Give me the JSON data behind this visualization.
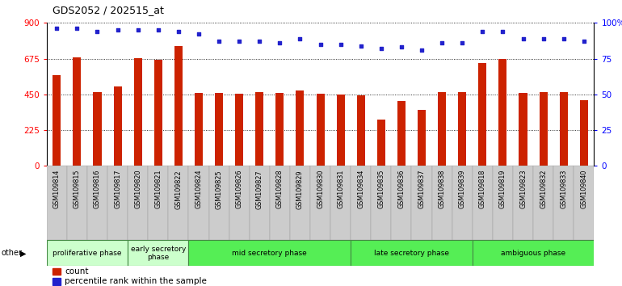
{
  "title": "GDS2052 / 202515_at",
  "samples": [
    "GSM109814",
    "GSM109815",
    "GSM109816",
    "GSM109817",
    "GSM109820",
    "GSM109821",
    "GSM109822",
    "GSM109824",
    "GSM109825",
    "GSM109826",
    "GSM109827",
    "GSM109828",
    "GSM109829",
    "GSM109830",
    "GSM109831",
    "GSM109834",
    "GSM109835",
    "GSM109836",
    "GSM109837",
    "GSM109838",
    "GSM109839",
    "GSM109818",
    "GSM109819",
    "GSM109823",
    "GSM109832",
    "GSM109833",
    "GSM109840"
  ],
  "counts": [
    570,
    685,
    465,
    500,
    680,
    668,
    755,
    460,
    460,
    455,
    462,
    460,
    475,
    455,
    450,
    445,
    290,
    410,
    355,
    462,
    462,
    648,
    672,
    460,
    462,
    462,
    415
  ],
  "percentiles": [
    96,
    96,
    94,
    95,
    95,
    95,
    94,
    92,
    87,
    87,
    87,
    86,
    89,
    85,
    85,
    84,
    82,
    83,
    81,
    86,
    86,
    94,
    94,
    89,
    89,
    89,
    87
  ],
  "bar_color": "#cc2200",
  "dot_color": "#2222cc",
  "ylim_left": [
    0,
    900
  ],
  "ylim_right": [
    0,
    100
  ],
  "yticks_left": [
    0,
    225,
    450,
    675,
    900
  ],
  "yticks_right": [
    0,
    25,
    50,
    75,
    100
  ],
  "ytick_labels_right": [
    "0",
    "25",
    "50",
    "75",
    "100%"
  ],
  "groups": [
    {
      "label": "proliferative phase",
      "start": 0,
      "end": 4,
      "color": "#ccffcc"
    },
    {
      "label": "early secretory\nphase",
      "start": 4,
      "end": 7,
      "color": "#ccffcc"
    },
    {
      "label": "mid secretory phase",
      "start": 7,
      "end": 15,
      "color": "#55ee55"
    },
    {
      "label": "late secretory phase",
      "start": 15,
      "end": 21,
      "color": "#55ee55"
    },
    {
      "label": "ambiguous phase",
      "start": 21,
      "end": 27,
      "color": "#55ee55"
    }
  ],
  "background_color": "#ffffff",
  "plot_bg_color": "#ffffff",
  "legend_count_label": "count",
  "legend_pct_label": "percentile rank within the sample"
}
